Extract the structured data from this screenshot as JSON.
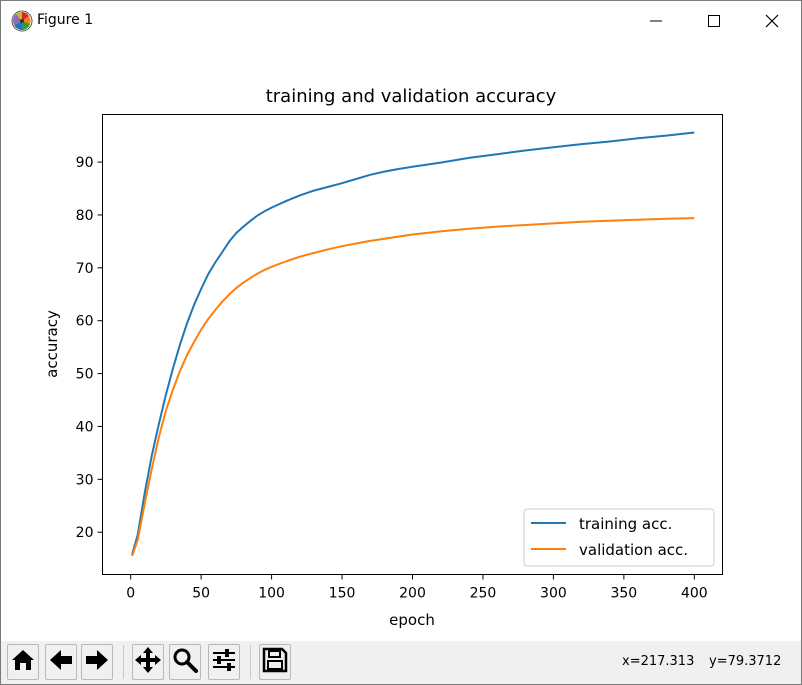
{
  "window": {
    "title": "Figure 1"
  },
  "controls": {
    "minimize_icon": "minimize-icon",
    "maximize_icon": "maximize-icon",
    "close_icon": "close-icon"
  },
  "toolbar": {
    "buttons": [
      {
        "name": "home-button",
        "icon": "home-icon"
      },
      {
        "name": "back-button",
        "icon": "arrow-left-icon"
      },
      {
        "name": "forward-button",
        "icon": "arrow-right-icon"
      },
      {
        "name": "pan-button",
        "icon": "move-icon"
      },
      {
        "name": "zoom-button",
        "icon": "magnifier-icon"
      },
      {
        "name": "subplots-button",
        "icon": "sliders-icon"
      },
      {
        "name": "save-button",
        "icon": "floppy-icon"
      }
    ],
    "coord_x": "x=217.313",
    "coord_y": "y=79.3712"
  },
  "chart_data": {
    "type": "line",
    "title": "training and validation accuracy",
    "xlabel": "epoch",
    "ylabel": "accuracy",
    "xlim": [
      -20,
      420
    ],
    "ylim": [
      12,
      99
    ],
    "xticks": [
      0,
      50,
      100,
      150,
      200,
      250,
      300,
      350,
      400
    ],
    "yticks": [
      20,
      30,
      40,
      50,
      60,
      70,
      80,
      90
    ],
    "legend_position": "lower-right",
    "grid": false,
    "series": [
      {
        "name": "training acc.",
        "color": "#1f77b4",
        "x": [
          1,
          5,
          10,
          15,
          20,
          25,
          30,
          35,
          40,
          45,
          50,
          55,
          60,
          65,
          70,
          75,
          80,
          85,
          90,
          95,
          100,
          110,
          120,
          130,
          140,
          150,
          160,
          170,
          180,
          190,
          200,
          220,
          240,
          260,
          280,
          300,
          320,
          340,
          360,
          380,
          400
        ],
        "y": [
          15.8,
          19.5,
          27.5,
          34.5,
          40.5,
          46.0,
          51.0,
          55.5,
          59.5,
          63.0,
          66.0,
          68.8,
          71.0,
          73.0,
          75.0,
          76.6,
          77.8,
          78.9,
          79.9,
          80.7,
          81.4,
          82.6,
          83.7,
          84.6,
          85.3,
          86.0,
          86.8,
          87.6,
          88.2,
          88.7,
          89.1,
          89.9,
          90.8,
          91.5,
          92.2,
          92.8,
          93.4,
          93.9,
          94.5,
          95.0,
          95.6
        ]
      },
      {
        "name": "validation acc.",
        "color": "#ff7f0e",
        "x": [
          1,
          5,
          10,
          15,
          20,
          25,
          30,
          35,
          40,
          45,
          50,
          55,
          60,
          65,
          70,
          75,
          80,
          85,
          90,
          95,
          100,
          110,
          120,
          130,
          140,
          150,
          160,
          170,
          180,
          190,
          200,
          220,
          240,
          260,
          280,
          300,
          320,
          340,
          360,
          380,
          400
        ],
        "y": [
          15.5,
          18.5,
          25.5,
          32.0,
          38.0,
          43.0,
          47.0,
          50.5,
          53.5,
          56.0,
          58.3,
          60.3,
          62.0,
          63.6,
          65.0,
          66.2,
          67.2,
          68.1,
          68.9,
          69.6,
          70.2,
          71.2,
          72.1,
          72.8,
          73.5,
          74.1,
          74.6,
          75.1,
          75.5,
          75.9,
          76.3,
          76.9,
          77.4,
          77.8,
          78.1,
          78.4,
          78.7,
          78.9,
          79.1,
          79.3,
          79.4
        ]
      }
    ]
  }
}
